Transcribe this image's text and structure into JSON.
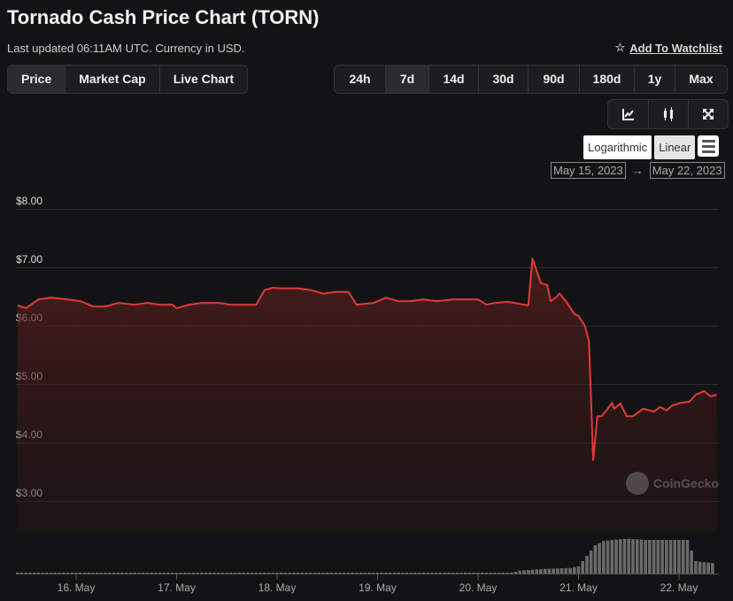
{
  "title": "Tornado Cash Price Chart (TORN)",
  "last_updated": "Last updated 06:11AM UTC. Currency in USD.",
  "watchlist": {
    "label": "Add To Watchlist",
    "icon": "star-outline-icon"
  },
  "tabs": [
    {
      "label": "Price",
      "active": true
    },
    {
      "label": "Market Cap"
    },
    {
      "label": "Live Chart"
    }
  ],
  "ranges": [
    {
      "label": "24h"
    },
    {
      "label": "7d",
      "active": true
    },
    {
      "label": "14d"
    },
    {
      "label": "30d"
    },
    {
      "label": "90d"
    },
    {
      "label": "180d"
    },
    {
      "label": "1y"
    },
    {
      "label": "Max"
    }
  ],
  "tools": [
    "line-chart-icon",
    "candlestick-icon",
    "fullscreen-icon"
  ],
  "scale": {
    "log": "Logarithmic",
    "linear": "Linear",
    "selected": "Linear",
    "menu_icon": "hamburger-menu-icon"
  },
  "date_range": {
    "from": "May 15, 2023",
    "arrow": "→",
    "to": "May 22, 2023"
  },
  "watermark": "CoinGecko",
  "colors": {
    "line": "#e03a3a",
    "background": "#131315"
  },
  "chart_data": {
    "type": "area",
    "ylim": [
      2.65,
      8.2
    ],
    "yticks": [
      "$3.00",
      "$4.00",
      "$5.00",
      "$6.00",
      "$7.00",
      "$8.00"
    ],
    "ytick_values": [
      3,
      4,
      5,
      6,
      7,
      8
    ],
    "xticks": [
      "16. May",
      "17. May",
      "18. May",
      "19. May",
      "20. May",
      "21. May",
      "22. May"
    ],
    "xtick_dates": [
      "2023-05-16T00:00",
      "2023-05-17T00:00",
      "2023-05-18T00:00",
      "2023-05-19T00:00",
      "2023-05-20T00:00",
      "2023-05-21T00:00",
      "2023-05-22T00:00"
    ],
    "xlim": [
      "2023-05-15T10:00",
      "2023-05-22T09:00"
    ],
    "grid": true,
    "series": [
      {
        "points": [
          [
            "2023-05-15T10:00",
            6.35
          ],
          [
            "2023-05-15T12:00",
            6.3
          ],
          [
            "2023-05-15T15:00",
            6.45
          ],
          [
            "2023-05-15T18:00",
            6.48
          ],
          [
            "2023-05-15T22:00",
            6.45
          ],
          [
            "2023-05-16T01:00",
            6.42
          ],
          [
            "2023-05-16T04:00",
            6.33
          ],
          [
            "2023-05-16T07:00",
            6.33
          ],
          [
            "2023-05-16T10:00",
            6.39
          ],
          [
            "2023-05-16T14:00",
            6.36
          ],
          [
            "2023-05-16T17:00",
            6.39
          ],
          [
            "2023-05-16T20:00",
            6.36
          ],
          [
            "2023-05-16T23:00",
            6.36
          ],
          [
            "2023-05-17T00:00",
            6.3
          ],
          [
            "2023-05-17T03:00",
            6.36
          ],
          [
            "2023-05-17T06:00",
            6.39
          ],
          [
            "2023-05-17T10:00",
            6.39
          ],
          [
            "2023-05-17T13:00",
            6.36
          ],
          [
            "2023-05-17T16:00",
            6.36
          ],
          [
            "2023-05-17T19:00",
            6.36
          ],
          [
            "2023-05-17T21:00",
            6.61
          ],
          [
            "2023-05-17T23:00",
            6.65
          ],
          [
            "2023-05-18T01:00",
            6.64
          ],
          [
            "2023-05-18T05:00",
            6.64
          ],
          [
            "2023-05-18T08:00",
            6.61
          ],
          [
            "2023-05-18T11:00",
            6.55
          ],
          [
            "2023-05-18T14:00",
            6.58
          ],
          [
            "2023-05-18T17:00",
            6.58
          ],
          [
            "2023-05-18T19:00",
            6.36
          ],
          [
            "2023-05-18T23:00",
            6.39
          ],
          [
            "2023-05-19T02:00",
            6.48
          ],
          [
            "2023-05-19T05:00",
            6.42
          ],
          [
            "2023-05-19T08:00",
            6.42
          ],
          [
            "2023-05-19T11:00",
            6.45
          ],
          [
            "2023-05-19T14:00",
            6.42
          ],
          [
            "2023-05-19T18:00",
            6.45
          ],
          [
            "2023-05-19T21:00",
            6.45
          ],
          [
            "2023-05-20T00:00",
            6.45
          ],
          [
            "2023-05-20T02:00",
            6.36
          ],
          [
            "2023-05-20T04:00",
            6.39
          ],
          [
            "2023-05-20T07:00",
            6.41
          ],
          [
            "2023-05-20T11:00",
            6.36
          ],
          [
            "2023-05-20T12:00",
            6.35
          ],
          [
            "2023-05-20T13:00",
            7.15
          ],
          [
            "2023-05-20T15:00",
            6.73
          ],
          [
            "2023-05-20T16:30",
            6.7
          ],
          [
            "2023-05-20T17:20",
            6.42
          ],
          [
            "2023-05-20T18:30",
            6.48
          ],
          [
            "2023-05-20T19:30",
            6.55
          ],
          [
            "2023-05-20T21:00",
            6.42
          ],
          [
            "2023-05-20T23:00",
            6.2
          ],
          [
            "2023-05-21T00:00",
            6.17
          ],
          [
            "2023-05-21T01:30",
            6.0
          ],
          [
            "2023-05-21T02:30",
            5.73
          ],
          [
            "2023-05-21T03:30",
            3.7
          ],
          [
            "2023-05-21T04:30",
            4.45
          ],
          [
            "2023-05-21T05:30",
            4.45
          ],
          [
            "2023-05-21T07:00",
            4.58
          ],
          [
            "2023-05-21T08:00",
            4.68
          ],
          [
            "2023-05-21T08:30",
            4.58
          ],
          [
            "2023-05-21T10:00",
            4.67
          ],
          [
            "2023-05-21T11:30",
            4.45
          ],
          [
            "2023-05-21T13:00",
            4.45
          ],
          [
            "2023-05-21T15:30",
            4.58
          ],
          [
            "2023-05-21T18:00",
            4.53
          ],
          [
            "2023-05-21T19:30",
            4.61
          ],
          [
            "2023-05-21T21:00",
            4.55
          ],
          [
            "2023-05-21T22:30",
            4.64
          ],
          [
            "2023-05-22T00:30",
            4.68
          ],
          [
            "2023-05-22T02:30",
            4.7
          ],
          [
            "2023-05-22T04:00",
            4.82
          ],
          [
            "2023-05-22T06:00",
            4.88
          ],
          [
            "2023-05-22T07:30",
            4.79
          ],
          [
            "2023-05-22T09:00",
            4.82
          ]
        ]
      }
    ],
    "volume_relative": [
      0.02,
      0.02,
      0.02,
      0.02,
      0.02,
      0.02,
      0.02,
      0.02,
      0.02,
      0.02,
      0.02,
      0.02,
      0.02,
      0.02,
      0.02,
      0.02,
      0.02,
      0.02,
      0.02,
      0.02,
      0.02,
      0.02,
      0.02,
      0.02,
      0.02,
      0.02,
      0.02,
      0.02,
      0.02,
      0.02,
      0.02,
      0.02,
      0.02,
      0.02,
      0.02,
      0.02,
      0.02,
      0.02,
      0.02,
      0.02,
      0.02,
      0.02,
      0.02,
      0.02,
      0.02,
      0.02,
      0.02,
      0.02,
      0.02,
      0.02,
      0.02,
      0.02,
      0.02,
      0.02,
      0.02,
      0.02,
      0.02,
      0.02,
      0.02,
      0.02,
      0.08,
      0.1,
      0.12,
      0.13,
      0.14,
      0.15,
      0.16,
      0.2,
      0.5,
      0.8,
      0.92,
      0.95,
      0.97,
      0.98,
      0.97,
      0.95,
      0.95,
      0.95,
      0.95,
      0.95,
      0.95,
      0.35,
      0.32,
      0.3
    ]
  }
}
